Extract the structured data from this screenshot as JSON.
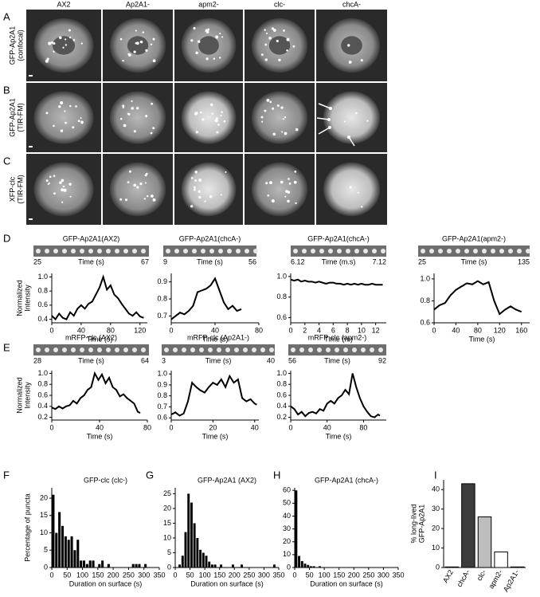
{
  "image_panels": {
    "columns": [
      "AX2",
      "Ap2A1-",
      "apm2-",
      "clc-",
      "chcA-"
    ],
    "rows": [
      {
        "panel": "A",
        "label": [
          "GFP-Ap2A1",
          "(confocal)"
        ]
      },
      {
        "panel": "B",
        "label": [
          "GFP-Ap2A1",
          "(TIR-FM)"
        ]
      },
      {
        "panel": "C",
        "label": [
          "XFP-clc",
          "(TIR-FM)"
        ]
      }
    ]
  },
  "chart_data": [
    {
      "panel": "D",
      "type": "line",
      "title": "GFP-Ap2A1(AX2)",
      "strip_labels": [
        "25",
        "Time (s)",
        "67"
      ],
      "ylabel": [
        "Normalized",
        "Intensity"
      ],
      "xlabel": "Time (s)",
      "color": "#000000",
      "x": [
        0,
        5,
        10,
        15,
        20,
        25,
        30,
        35,
        40,
        45,
        50,
        55,
        60,
        65,
        70,
        75,
        80,
        85,
        90,
        95,
        100,
        105,
        110,
        115,
        120,
        125
      ],
      "values": [
        0.45,
        0.4,
        0.48,
        0.42,
        0.4,
        0.5,
        0.45,
        0.55,
        0.6,
        0.55,
        0.62,
        0.65,
        0.75,
        0.85,
        1.0,
        0.82,
        0.88,
        0.75,
        0.7,
        0.62,
        0.55,
        0.48,
        0.45,
        0.5,
        0.44,
        0.42
      ],
      "xlim": [
        0,
        130
      ],
      "ylim": [
        0.35,
        1.05
      ],
      "xticks": [
        0,
        40,
        80,
        120
      ],
      "yticks": [
        0.4,
        0.6,
        0.8,
        {
          "value": 1,
          "label": "1.0"
        }
      ]
    },
    {
      "type": "line",
      "title": "GFP-Ap2A1(chcA-)",
      "strip_labels": [
        "9",
        "Time (s)",
        "56"
      ],
      "xlabel": "Time (s)",
      "color": "#000000",
      "x": [
        0,
        4,
        8,
        12,
        16,
        20,
        24,
        28,
        32,
        36,
        40,
        44,
        48,
        52,
        56,
        60,
        64
      ],
      "values": [
        0.68,
        0.7,
        0.72,
        0.71,
        0.73,
        0.76,
        0.84,
        0.85,
        0.86,
        0.88,
        0.92,
        0.85,
        0.78,
        0.74,
        0.76,
        0.73,
        0.74
      ],
      "xlim": [
        0,
        80
      ],
      "ylim": [
        0.66,
        0.95
      ],
      "xticks": [
        0,
        40,
        80
      ],
      "yticks": [
        0.7,
        0.8,
        0.9
      ]
    },
    {
      "type": "line",
      "title": "GFP-Ap2A1(chcA-)",
      "strip_labels": [
        "6.12",
        "Time (m.s)",
        "7.12"
      ],
      "xlabel": "Time (m)",
      "color": "#000000",
      "x": [
        0,
        0.5,
        1,
        1.5,
        2,
        2.5,
        3,
        3.5,
        4,
        4.5,
        5,
        5.5,
        6,
        6.5,
        7,
        7.5,
        8,
        8.5,
        9,
        9.5,
        10,
        10.5,
        11,
        11.5,
        12,
        12.5,
        13
      ],
      "values": [
        0.97,
        0.96,
        0.97,
        0.95,
        0.96,
        0.95,
        0.95,
        0.94,
        0.95,
        0.94,
        0.93,
        0.94,
        0.94,
        0.93,
        0.93,
        0.92,
        0.93,
        0.92,
        0.93,
        0.92,
        0.93,
        0.92,
        0.92,
        0.93,
        0.92,
        0.92,
        0.92
      ],
      "xlim": [
        0,
        13.5
      ],
      "ylim": [
        0.55,
        1.03
      ],
      "xticks": [
        0,
        2,
        4,
        6,
        8,
        10,
        12
      ],
      "yticks": [
        0.6,
        0.8,
        {
          "value": 1,
          "label": "1.0"
        }
      ]
    },
    {
      "type": "line",
      "title": "GFP-Ap2A1(apm2-)",
      "strip_labels": [
        "25",
        "Time (s)",
        "135"
      ],
      "xlabel": "Time (s)",
      "color": "#000000",
      "x": [
        0,
        10,
        20,
        30,
        40,
        50,
        60,
        70,
        80,
        90,
        100,
        110,
        120,
        130,
        140,
        150,
        160
      ],
      "values": [
        0.72,
        0.76,
        0.78,
        0.85,
        0.9,
        0.93,
        0.96,
        0.95,
        0.98,
        0.95,
        0.97,
        0.8,
        0.68,
        0.72,
        0.75,
        0.72,
        0.7
      ],
      "xlim": [
        0,
        175
      ],
      "ylim": [
        0.6,
        1.05
      ],
      "xticks": [
        0,
        40,
        80,
        120,
        160
      ],
      "yticks": [
        0.6,
        0.8,
        {
          "value": 1,
          "label": "1.0"
        }
      ]
    },
    {
      "panel": "E",
      "type": "line",
      "title": "mRFP-clc (AX2)",
      "strip_labels": [
        "28",
        "Time (s)",
        "64"
      ],
      "ylabel": [
        "Normalized",
        "Intensity"
      ],
      "xlabel": "Time (s)",
      "color": "#000000",
      "x": [
        0,
        3,
        6,
        9,
        12,
        15,
        18,
        21,
        24,
        27,
        30,
        33,
        36,
        39,
        42,
        45,
        48,
        51,
        54,
        57,
        60,
        63,
        66,
        69,
        72,
        74
      ],
      "values": [
        0.38,
        0.35,
        0.4,
        0.36,
        0.4,
        0.42,
        0.5,
        0.45,
        0.55,
        0.6,
        0.7,
        0.75,
        1.0,
        0.88,
        0.98,
        0.82,
        0.92,
        0.75,
        0.7,
        0.58,
        0.62,
        0.55,
        0.5,
        0.45,
        0.3,
        0.28
      ],
      "xlim": [
        0,
        80
      ],
      "ylim": [
        0.15,
        1.05
      ],
      "xticks": [
        0,
        40,
        80
      ],
      "yticks": [
        0.2,
        0.4,
        0.6,
        0.8,
        {
          "value": 1,
          "label": "1.0"
        }
      ]
    },
    {
      "type": "line",
      "title": "mRFP-clc (Ap2A1-)",
      "strip_labels": [
        "3",
        "Time (s)",
        "40"
      ],
      "xlabel": "Time (s)",
      "color": "#000000",
      "x": [
        0,
        2,
        4,
        6,
        8,
        10,
        12,
        14,
        16,
        18,
        20,
        22,
        24,
        26,
        28,
        30,
        32,
        34,
        36,
        38,
        40,
        41
      ],
      "values": [
        0.63,
        0.65,
        0.62,
        0.64,
        0.75,
        0.92,
        0.88,
        0.85,
        0.83,
        0.88,
        0.92,
        0.9,
        0.95,
        0.88,
        0.98,
        0.92,
        0.95,
        0.78,
        0.75,
        0.77,
        0.73,
        0.72
      ],
      "xlim": [
        0,
        42
      ],
      "ylim": [
        0.58,
        1.03
      ],
      "xticks": [
        0,
        20,
        40
      ],
      "yticks": [
        0.6,
        0.7,
        0.8,
        0.9,
        {
          "value": 1,
          "label": "1.0"
        }
      ]
    },
    {
      "type": "line",
      "title": "mRFP-clc (apm2-)",
      "strip_labels": [
        "56",
        "Time (s)",
        "92"
      ],
      "xlabel": "Time (s)",
      "color": "#000000",
      "x": [
        0,
        4,
        8,
        12,
        16,
        20,
        24,
        28,
        32,
        36,
        40,
        44,
        48,
        52,
        56,
        60,
        64,
        68,
        72,
        76,
        80,
        84,
        88,
        92,
        96,
        98
      ],
      "values": [
        0.4,
        0.35,
        0.25,
        0.3,
        0.22,
        0.28,
        0.3,
        0.27,
        0.35,
        0.32,
        0.45,
        0.5,
        0.45,
        0.55,
        0.6,
        0.7,
        0.62,
        1.0,
        0.75,
        0.55,
        0.4,
        0.3,
        0.22,
        0.2,
        0.25,
        0.23
      ],
      "xlim": [
        0,
        105
      ],
      "ylim": [
        0.15,
        1.05
      ],
      "xticks": [
        0,
        40,
        80
      ],
      "yticks": [
        0.2,
        0.4,
        0.6,
        0.8,
        {
          "value": 1,
          "label": "1.0"
        }
      ]
    },
    {
      "panel": "F",
      "type": "histogram",
      "title": "GFP-clc (clc-)",
      "ylabel": [
        "Percentage of puncta"
      ],
      "xlabel": "Duration on surface (s)",
      "color": "#000000",
      "bins": [
        0,
        10,
        20,
        30,
        40,
        50,
        60,
        70,
        80,
        90,
        100,
        110,
        120,
        130,
        140,
        150,
        160,
        170,
        180,
        190,
        200,
        210,
        220,
        230,
        240,
        250,
        260,
        270,
        280,
        290,
        300,
        310,
        320,
        330,
        340,
        350
      ],
      "values": [
        21,
        10,
        16,
        12,
        9,
        8,
        9,
        5,
        8,
        2,
        2,
        1,
        2,
        2,
        0,
        1,
        2,
        0,
        1,
        0,
        0,
        0,
        0,
        0,
        0,
        0,
        1,
        1,
        1,
        0,
        1,
        0,
        0,
        0,
        0
      ],
      "xlim": [
        0,
        350
      ],
      "ylim": [
        0,
        23
      ],
      "xticks": [
        0,
        50,
        100,
        150,
        200,
        250,
        300,
        350
      ],
      "yticks": [
        0,
        5,
        10,
        15,
        20
      ]
    },
    {
      "panel": "G",
      "type": "histogram",
      "title": "GFP-Ap2A1 (AX2)",
      "xlabel": "Duration on surface (s)",
      "color": "#000000",
      "bins": [
        0,
        10,
        20,
        30,
        40,
        50,
        60,
        70,
        80,
        90,
        100,
        110,
        120,
        130,
        140,
        150,
        160,
        170,
        180,
        190,
        200,
        210,
        220,
        230,
        240,
        250,
        260,
        270,
        280,
        290,
        300,
        310,
        320,
        330,
        340,
        350
      ],
      "values": [
        0,
        1,
        4,
        12,
        25,
        22,
        15,
        10,
        6,
        5,
        4,
        2,
        1,
        1,
        0,
        1,
        0,
        0,
        0,
        1,
        0,
        0,
        1,
        0,
        0,
        0,
        0,
        0,
        0,
        0,
        0,
        0,
        0,
        1,
        0
      ],
      "xlim": [
        0,
        350
      ],
      "ylim": [
        0,
        27
      ],
      "xticks": [
        0,
        50,
        100,
        150,
        200,
        250,
        300,
        350
      ],
      "yticks": [
        0,
        5,
        10,
        15,
        20,
        25
      ]
    },
    {
      "panel": "H",
      "type": "histogram",
      "title": "GFP-Ap2A1 (chcA-)",
      "xlabel": "Duration on surface (s)",
      "color": "#000000",
      "bins": [
        0,
        10,
        20,
        30,
        40,
        50,
        60,
        70,
        80,
        90,
        100,
        110,
        120,
        130,
        140,
        150,
        160,
        170,
        180,
        190,
        200,
        210,
        220,
        230,
        240,
        250,
        260,
        270,
        280,
        290,
        300,
        310,
        320,
        330,
        340,
        350
      ],
      "values": [
        60,
        9,
        5,
        3,
        2,
        1,
        1,
        0,
        1,
        0,
        0,
        0,
        0,
        0,
        0,
        0,
        0,
        0,
        0,
        0,
        0,
        0,
        0,
        0,
        0,
        0,
        0,
        0,
        0,
        0,
        0,
        0,
        0,
        0,
        0
      ],
      "xlim": [
        0,
        350
      ],
      "ylim": [
        0,
        62
      ],
      "xticks": [
        0,
        50,
        100,
        150,
        200,
        250,
        300,
        350
      ],
      "yticks": [
        0,
        10,
        20,
        30,
        40,
        50,
        60
      ]
    },
    {
      "panel": "I",
      "type": "bar",
      "ylabel": [
        "% long-lived",
        "GFP-Ap2A1"
      ],
      "categories": [
        "AX2",
        "chcA-",
        "clc-",
        "apm2-",
        "Ap2A1-"
      ],
      "values": [
        0.3,
        43,
        26,
        8,
        0.3
      ],
      "colors": [
        "#ffffff",
        "#3c3c3c",
        "#bdbdbd",
        "#ffffff",
        "#ffffff"
      ],
      "ylim": [
        0,
        45
      ],
      "yticks": [
        0,
        10,
        20,
        30,
        40
      ]
    }
  ]
}
